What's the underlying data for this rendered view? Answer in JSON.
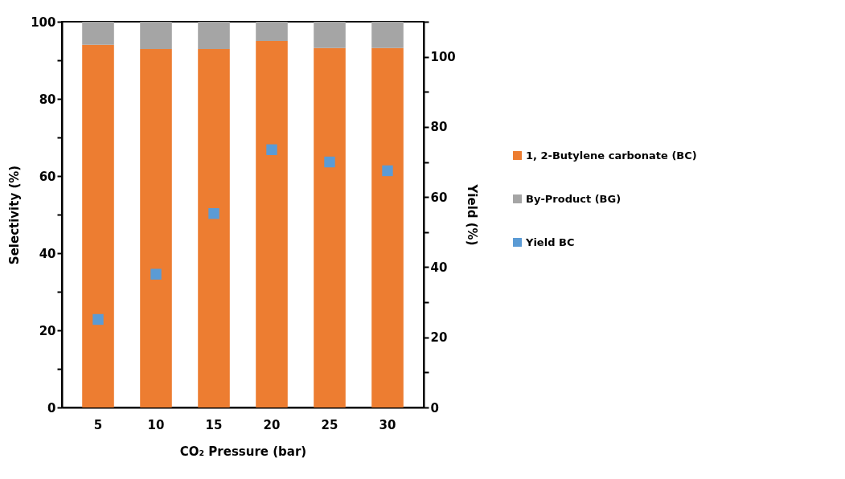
{
  "chart_data": {
    "type": "bar",
    "stacked": true,
    "xlabel": "CO₂ Pressure (bar)",
    "ylabel": "Selectivity (%)",
    "y2label": "Yield (%)",
    "categories": [
      "5",
      "10",
      "15",
      "20",
      "25",
      "30"
    ],
    "series": [
      {
        "name": "1, 2-Butylene carbonate (BC)",
        "color": "#ed7d31",
        "values": [
          94.0,
          92.9,
          92.9,
          95.0,
          93.2,
          93.2
        ]
      },
      {
        "name": "By-Product (BG)",
        "color": "#a5a5a5",
        "values": [
          6.0,
          7.1,
          7.1,
          5.0,
          6.8,
          6.8
        ]
      },
      {
        "name": "Yield BC",
        "type": "scatter",
        "axis": "y2",
        "marker": "square",
        "color": "#5b9bd5",
        "values": [
          25.1,
          38.0,
          55.3,
          73.5,
          70.0,
          67.5
        ]
      }
    ],
    "ylim": [
      0,
      100
    ],
    "yticks": [
      0,
      {
        "value": 10,
        "label": null
      },
      20,
      {
        "value": 30,
        "label": null
      },
      40,
      {
        "value": 50,
        "label": null
      },
      60,
      {
        "value": 70,
        "label": null
      },
      80,
      {
        "value": 90,
        "label": null
      },
      100
    ],
    "y2lim": [
      0,
      110
    ],
    "y2ticks": [
      0,
      {
        "value": 10,
        "label": null
      },
      20,
      {
        "value": 30,
        "label": null
      },
      40,
      {
        "value": 50,
        "label": null
      },
      60,
      {
        "value": 70,
        "label": null
      },
      80,
      {
        "value": 90,
        "label": null
      },
      100,
      {
        "value": 110,
        "label": null
      }
    ],
    "grid": false,
    "legend": "right"
  }
}
